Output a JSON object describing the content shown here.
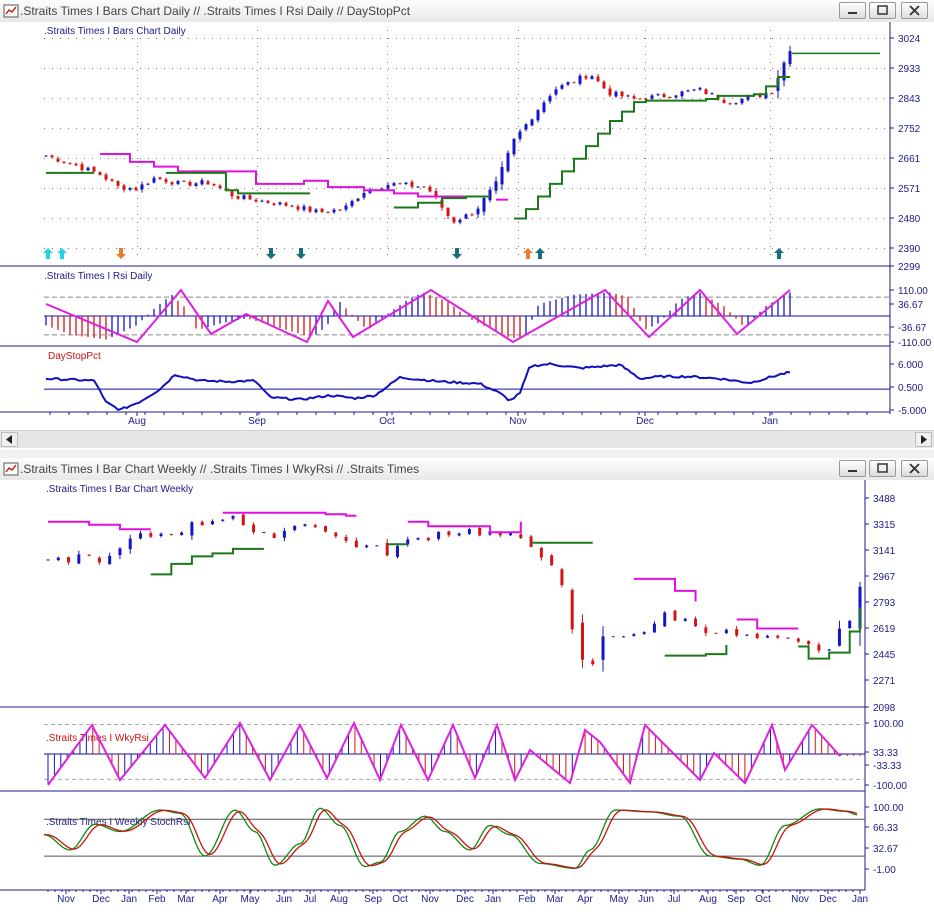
{
  "windows": [
    {
      "title": ".Straits Times I Bars Chart Daily // .Straits Times I Rsi Daily // DayStopPct",
      "panes": [
        {
          "label": ".Straits Times I Bars Chart Daily",
          "label_color": "#1c1c8a",
          "ticks": [
            "3024",
            "2933",
            "2843",
            "2752",
            "2661",
            "2571",
            "2480",
            "2390",
            "2299"
          ]
        },
        {
          "label": ".Straits Times I Rsi Daily",
          "label_color": "#1c1c8a",
          "ticks": [
            "110.00",
            "36.67",
            "-36.67",
            "-110.00"
          ]
        },
        {
          "label": "DayStopPct",
          "label_color": "#cc1111",
          "ticks": [
            "6.000",
            "0.500",
            "-5.000"
          ]
        }
      ],
      "x_labels": [
        "Aug",
        "Sep",
        "Oct",
        "Nov",
        "Dec",
        "Jan"
      ]
    },
    {
      "title": ".Straits Times I Bar Chart Weekly // .Straits Times I WkyRsi // .Straits Times",
      "panes": [
        {
          "label": ".Straits Times I Bar Chart Weekly",
          "label_color": "#1c1c8a",
          "ticks": [
            "3488",
            "3315",
            "3141",
            "2967",
            "2793",
            "2619",
            "2445",
            "2271",
            "2098"
          ]
        },
        {
          "label": ".Straits Times I WkyRsi",
          "label_color": "#cc1111",
          "ticks": [
            "100.00",
            "33.33",
            "-33.33",
            "-100.00"
          ]
        },
        {
          "label": ".Straits Times I Weekly StochRsi",
          "label_color": "#1c1c8a",
          "ticks": [
            "100.00",
            "66.33",
            "32.67",
            "-1.00"
          ]
        }
      ],
      "x_labels": [
        "Nov",
        "Dec",
        "Jan",
        "Feb",
        "Mar",
        "Apr",
        "May",
        "Jun",
        "Jul",
        "Aug",
        "Sep",
        "Oct",
        "Nov",
        "Dec",
        "Jan"
      ]
    }
  ],
  "colors": {
    "up": "#1515c8",
    "down": "#d41414",
    "stop_long": "#1a7a1a",
    "stop_short": "#e010e0",
    "rsi_line": "#dd22dd",
    "line_blue": "#1010c0",
    "stoch_green": "#118811",
    "stoch_red": "#cc1111",
    "signal_cyan": "#22d5e5",
    "signal_orange": "#f07a2a",
    "signal_teal": "#16707a"
  },
  "icons": {
    "app": "chart-window-icon",
    "minimize": "minimize-icon",
    "restore": "restore-icon",
    "close": "close-icon",
    "scroll_left": "scroll-left-arrow-icon",
    "scroll_right": "scroll-right-arrow-icon"
  }
}
